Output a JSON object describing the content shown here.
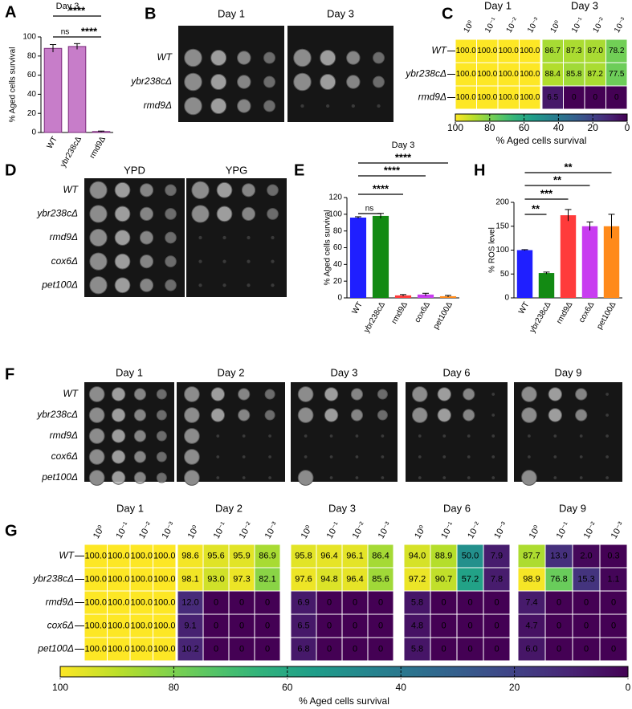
{
  "chart_data": [
    {
      "type": "bar",
      "panel": "A",
      "title": "Day 3",
      "ylabel": "% Aged cells survival",
      "categories": [
        "WT",
        "ybr238cΔ",
        "rmd9Δ"
      ],
      "values": [
        88,
        90,
        1
      ],
      "errors": [
        4,
        3,
        0.5
      ],
      "color": "#c77dc9",
      "ylim": [
        0,
        100
      ],
      "yticks": [
        0,
        20,
        40,
        60,
        80,
        100
      ],
      "annotations": [
        {
          "label": "ns",
          "between": [
            "WT",
            "ybr238cΔ"
          ]
        },
        {
          "label": "****",
          "between": [
            "WT",
            "rmd9Δ"
          ]
        },
        {
          "label": "****",
          "between": [
            "ybr238cΔ",
            "rmd9Δ"
          ]
        }
      ]
    },
    {
      "type": "spot-assay",
      "panel": "B",
      "columns": [
        "Day 1",
        "Day 3"
      ],
      "rows": [
        "WT",
        "ybr238cΔ",
        "rmd9Δ"
      ]
    },
    {
      "type": "heatmap",
      "panel": "C",
      "colormap": "viridis",
      "clim": [
        0,
        100
      ],
      "dilutions": [
        "10⁰",
        "10⁻¹",
        "10⁻²",
        "10⁻³"
      ],
      "rows": [
        "WT",
        "ybr238cΔ",
        "rmd9Δ"
      ],
      "groups": [
        {
          "name": "Day 1",
          "values": [
            [
              100,
              100,
              100,
              100
            ],
            [
              100,
              100,
              100,
              100
            ],
            [
              100,
              100,
              100,
              100
            ]
          ],
          "value_labels": [
            [
              "100.0",
              "100.0",
              "100.0",
              "100.0"
            ],
            [
              "100.0",
              "100.0",
              "100.0",
              "100.0"
            ],
            [
              "100.0",
              "100.0",
              "100.0",
              "100.0"
            ]
          ]
        },
        {
          "name": "Day 3",
          "values": [
            [
              86.7,
              87.3,
              87.0,
              78.2
            ],
            [
              88.4,
              85.8,
              87.2,
              77.5
            ],
            [
              6.5,
              0,
              0,
              0
            ]
          ],
          "value_labels": [
            [
              "86.7",
              "87.3",
              "87.0",
              "78.2"
            ],
            [
              "88.4",
              "85.8",
              "87.2",
              "77.5"
            ],
            [
              "6.5",
              "0",
              "0",
              "0"
            ]
          ]
        }
      ],
      "colorbar": {
        "label": "% Aged cells survival",
        "lim": [
          100,
          0
        ],
        "ticks": [
          100,
          80,
          60,
          40,
          20,
          0
        ]
      }
    },
    {
      "type": "spot-assay",
      "panel": "D",
      "columns": [
        "YPD",
        "YPG"
      ],
      "rows": [
        "WT",
        "ybr238cΔ",
        "rmd9Δ",
        "cox6Δ",
        "pet100Δ"
      ]
    },
    {
      "type": "bar",
      "panel": "E",
      "title": "Day 3",
      "ylabel": "% Aged cells survival",
      "categories": [
        "WT",
        "ybr238cΔ",
        "rmd9Δ",
        "cox6Δ",
        "pet100Δ"
      ],
      "values": [
        96,
        98,
        3,
        4,
        2
      ],
      "errors": [
        1,
        3,
        1,
        1.5,
        1
      ],
      "colors": [
        "#1f1fff",
        "#138a13",
        "#ff3b3b",
        "#c83cf0",
        "#ff8a1a"
      ],
      "ylim": [
        0,
        120
      ],
      "yticks": [
        0,
        20,
        40,
        60,
        80,
        100,
        120
      ],
      "annotations": [
        {
          "label": "ns",
          "between": [
            "WT",
            "ybr238cΔ"
          ]
        },
        {
          "label": "****",
          "between": [
            "WT",
            "rmd9Δ"
          ]
        },
        {
          "label": "****",
          "between": [
            "WT",
            "cox6Δ"
          ]
        },
        {
          "label": "****",
          "between": [
            "WT",
            "pet100Δ"
          ]
        }
      ]
    },
    {
      "type": "bar",
      "panel": "H",
      "ylabel": "% ROS level",
      "categories": [
        "WT",
        "ybr238cΔ",
        "rmd9Δ",
        "cox6Δ",
        "pet100Δ"
      ],
      "values": [
        100,
        52,
        173,
        150,
        150
      ],
      "errors": [
        1,
        2,
        12,
        9,
        25
      ],
      "colors": [
        "#1f1fff",
        "#138a13",
        "#ff3b3b",
        "#c83cf0",
        "#ff8a1a"
      ],
      "ylim": [
        0,
        200
      ],
      "yticks": [
        0,
        50,
        100,
        150,
        200
      ],
      "annotations": [
        {
          "label": "**",
          "between": [
            "WT",
            "ybr238cΔ"
          ]
        },
        {
          "label": "***",
          "between": [
            "WT",
            "rmd9Δ"
          ]
        },
        {
          "label": "**",
          "between": [
            "WT",
            "cox6Δ"
          ]
        },
        {
          "label": "**",
          "between": [
            "WT",
            "pet100Δ"
          ]
        }
      ]
    },
    {
      "type": "spot-assay",
      "panel": "F",
      "columns": [
        "Day 1",
        "Day 2",
        "Day 3",
        "Day 6",
        "Day 9"
      ],
      "rows": [
        "WT",
        "ybr238cΔ",
        "rmd9Δ",
        "cox6Δ",
        "pet100Δ"
      ]
    },
    {
      "type": "heatmap",
      "panel": "G",
      "colormap": "viridis",
      "clim": [
        0,
        100
      ],
      "dilutions": [
        "10⁰",
        "10⁻¹",
        "10⁻²",
        "10⁻³"
      ],
      "rows": [
        "WT",
        "ybr238cΔ",
        "rmd9Δ",
        "cox6Δ",
        "pet100Δ"
      ],
      "groups": [
        {
          "name": "Day 1",
          "values": [
            [
              100,
              100,
              100,
              100
            ],
            [
              100,
              100,
              100,
              100
            ],
            [
              100,
              100,
              100,
              100
            ],
            [
              100,
              100,
              100,
              100
            ],
            [
              100,
              100,
              100,
              100
            ]
          ],
          "value_labels": [
            [
              "100.0",
              "100.0",
              "100.0",
              "100.0"
            ],
            [
              "100.0",
              "100.0",
              "100.0",
              "100.0"
            ],
            [
              "100.0",
              "100.0",
              "100.0",
              "100.0"
            ],
            [
              "100.0",
              "100.0",
              "100.0",
              "100.0"
            ],
            [
              "100.0",
              "100.0",
              "100.0",
              "100.0"
            ]
          ]
        },
        {
          "name": "Day 2",
          "values": [
            [
              98.6,
              95.6,
              95.9,
              86.9
            ],
            [
              98.1,
              93.0,
              97.3,
              82.1
            ],
            [
              12.0,
              0,
              0,
              0
            ],
            [
              9.1,
              0,
              0,
              0
            ],
            [
              10.2,
              0,
              0,
              0
            ]
          ],
          "value_labels": [
            [
              "98.6",
              "95.6",
              "95.9",
              "86.9"
            ],
            [
              "98.1",
              "93.0",
              "97.3",
              "82.1"
            ],
            [
              "12.0",
              "0",
              "0",
              "0"
            ],
            [
              "9.1",
              "0",
              "0",
              "0"
            ],
            [
              "10.2",
              "0",
              "0",
              "0"
            ]
          ]
        },
        {
          "name": "Day 3",
          "values": [
            [
              95.8,
              96.4,
              96.1,
              86.4
            ],
            [
              97.6,
              94.8,
              96.4,
              85.6
            ],
            [
              6.9,
              0,
              0,
              0
            ],
            [
              6.5,
              0,
              0,
              0
            ],
            [
              6.8,
              0,
              0,
              0
            ]
          ],
          "value_labels": [
            [
              "95.8",
              "96.4",
              "96.1",
              "86.4"
            ],
            [
              "97.6",
              "94.8",
              "96.4",
              "85.6"
            ],
            [
              "6.9",
              "0",
              "0",
              "0"
            ],
            [
              "6.5",
              "0",
              "0",
              "0"
            ],
            [
              "6.8",
              "0",
              "0",
              "0"
            ]
          ]
        },
        {
          "name": "Day 6",
          "values": [
            [
              94.0,
              88.9,
              50.0,
              7.9
            ],
            [
              97.2,
              90.7,
              57.2,
              7.8
            ],
            [
              5.8,
              0,
              0,
              0
            ],
            [
              4.8,
              0,
              0,
              0
            ],
            [
              5.8,
              0,
              0,
              0
            ]
          ],
          "value_labels": [
            [
              "94.0",
              "88.9",
              "50.0",
              "7.9"
            ],
            [
              "97.2",
              "90.7",
              "57.2",
              "7.8"
            ],
            [
              "5.8",
              "0",
              "0",
              "0"
            ],
            [
              "4.8",
              "0",
              "0",
              "0"
            ],
            [
              "5.8",
              "0",
              "0",
              "0"
            ]
          ]
        },
        {
          "name": "Day 9",
          "values": [
            [
              87.7,
              13.9,
              2.0,
              0.3
            ],
            [
              98.9,
              76.8,
              15.3,
              1.1
            ],
            [
              7.4,
              0,
              0,
              0
            ],
            [
              4.7,
              0,
              0,
              0
            ],
            [
              6.0,
              0,
              0,
              0
            ]
          ],
          "value_labels": [
            [
              "87.7",
              "13.9",
              "2.0",
              "0.3"
            ],
            [
              "98.9",
              "76.8",
              "15.3",
              "1.1"
            ],
            [
              "7.4",
              "0",
              "0",
              "0"
            ],
            [
              "4.7",
              "0",
              "0",
              "0"
            ],
            [
              "6.0",
              "0",
              "0",
              "0"
            ]
          ]
        }
      ],
      "colorbar": {
        "label": "% Aged cells survival",
        "lim": [
          100,
          0
        ],
        "ticks": [
          100,
          80,
          60,
          40,
          20,
          0
        ]
      }
    }
  ]
}
